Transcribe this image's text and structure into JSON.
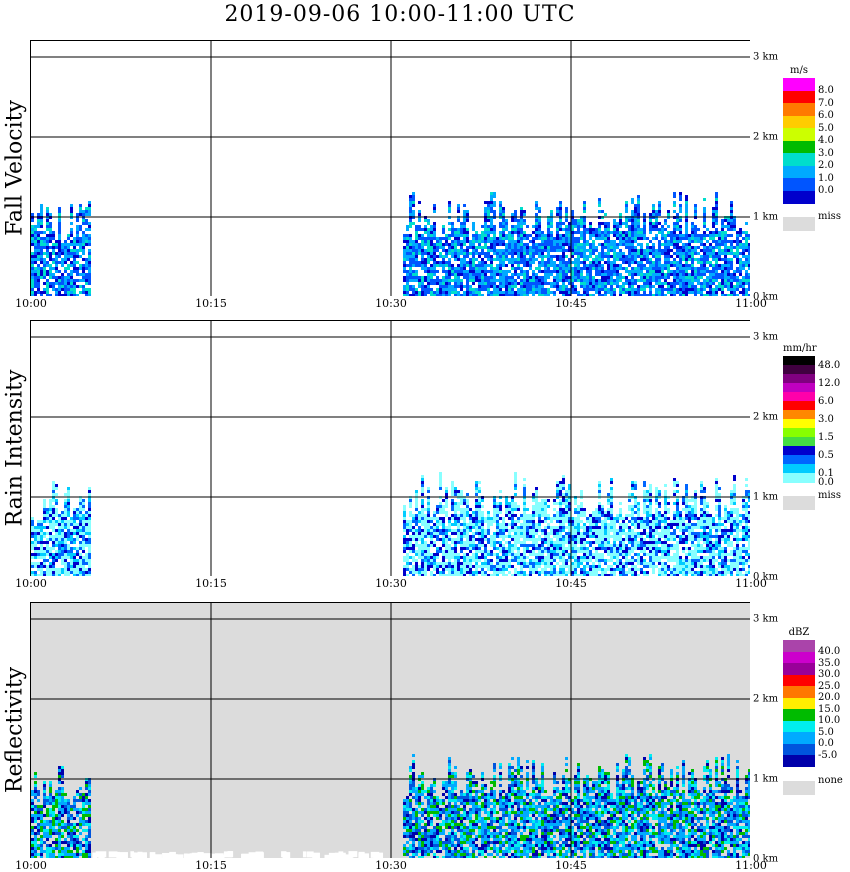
{
  "title": "2019-09-06   10:00-11:00 UTC",
  "x_ticks": [
    "10:00",
    "10:15",
    "10:30",
    "10:45",
    "11:00"
  ],
  "y_ticks": [
    "0 km",
    "1 km",
    "2 km",
    "3 km"
  ],
  "panels": [
    {
      "label": "Fall Velocity",
      "unit": "m/s",
      "legend_levels": [
        "8.0",
        "7.0",
        "6.0",
        "5.0",
        "4.0",
        "3.0",
        "2.0",
        "1.0",
        "0.0"
      ],
      "legend_colors": [
        "#ff00ff",
        "#ff0000",
        "#ff7a00",
        "#ffcc00",
        "#ccff00",
        "#00bb00",
        "#00ddcc",
        "#00aaff",
        "#0055ff",
        "#0000cc"
      ],
      "missing_label": "miss",
      "background": "#ffffff"
    },
    {
      "label": "Rain Intensity",
      "unit": "mm/hr",
      "legend_levels": [
        "48.0",
        "",
        "12.0",
        "",
        "6.0",
        "",
        "3.0",
        "",
        "1.5",
        "",
        "0.5",
        "",
        "0.1",
        "0.0"
      ],
      "legend_colors": [
        "#000000",
        "#400040",
        "#800080",
        "#c000c0",
        "#ff00aa",
        "#ff0000",
        "#ff8800",
        "#ffff00",
        "#88ff00",
        "#44dd44",
        "#0000cc",
        "#0066ff",
        "#00ccff",
        "#88ffff"
      ],
      "missing_label": "miss",
      "background": "#ffffff"
    },
    {
      "label": "Reflectivity",
      "unit": "dBZ",
      "legend_levels": [
        "40.0",
        "35.0",
        "30.0",
        "25.0",
        "20.0",
        "15.0",
        "10.0",
        "5.0",
        "0.0",
        "-5.0"
      ],
      "legend_colors": [
        "#aa44aa",
        "#cc00cc",
        "#990099",
        "#ff0000",
        "#ff7700",
        "#ffee00",
        "#00bb00",
        "#00eeee",
        "#00aaff",
        "#0055dd",
        "#0000aa"
      ],
      "missing_label": "none",
      "background": "#dcdcdc"
    }
  ],
  "chart_data": [
    {
      "type": "heatmap",
      "title": "2019-09-06   10:00-11:00 UTC",
      "ylabel": "Fall Velocity",
      "colorbar_unit": "m/s",
      "x_range": [
        "10:00",
        "11:00"
      ],
      "y_range_km": [
        0,
        3.2
      ],
      "grid": true,
      "echo_regions": [
        {
          "start": "10:00",
          "end": "10:05",
          "top_km": 1.2
        },
        {
          "start": "10:31",
          "end": "11:00",
          "top_km": 1.3
        }
      ]
    },
    {
      "type": "heatmap",
      "ylabel": "Rain Intensity",
      "colorbar_unit": "mm/hr",
      "x_range": [
        "10:00",
        "11:00"
      ],
      "y_range_km": [
        0,
        3.2
      ],
      "grid": true,
      "echo_regions": [
        {
          "start": "10:00",
          "end": "10:05",
          "top_km": 1.2
        },
        {
          "start": "10:31",
          "end": "11:00",
          "top_km": 1.3
        }
      ]
    },
    {
      "type": "heatmap",
      "ylabel": "Reflectivity",
      "colorbar_unit": "dBZ",
      "x_range": [
        "10:00",
        "11:00"
      ],
      "y_range_km": [
        0,
        3.2
      ],
      "grid": true,
      "echo_regions": [
        {
          "start": "10:00",
          "end": "10:05",
          "top_km": 1.2
        },
        {
          "start": "10:31",
          "end": "11:00",
          "top_km": 1.3
        }
      ]
    }
  ]
}
